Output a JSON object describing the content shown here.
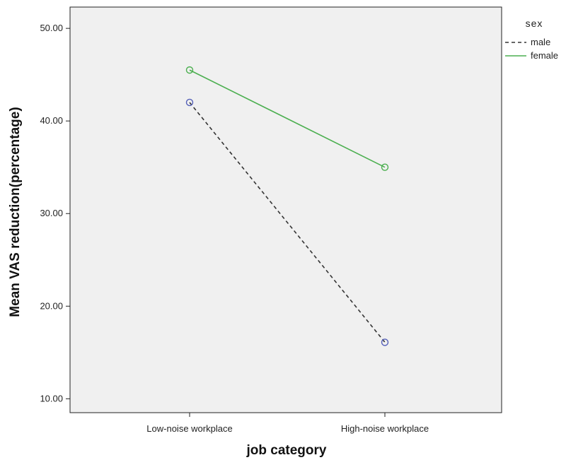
{
  "chart_data": {
    "type": "line",
    "title": "",
    "xlabel": "job category",
    "ylabel": "Mean VAS reduction(percentage)",
    "categories": [
      "Low-noise workplace",
      "High-noise workplace"
    ],
    "yticks": [
      "10.00",
      "20.00",
      "30.00",
      "40.00",
      "50.00"
    ],
    "ytick_values": [
      10,
      20,
      30,
      40,
      50
    ],
    "ylim": [
      8.5,
      52.3
    ],
    "grid": false,
    "plot_background": "#f0f0f0",
    "legend": {
      "title": "sex",
      "position": "outside-right-top"
    },
    "series": [
      {
        "name": "male",
        "values": [
          42.0,
          16.1
        ],
        "color": "#333333",
        "marker_color": "#5560b8",
        "line_style": "dashed"
      },
      {
        "name": "female",
        "values": [
          45.5,
          35.0
        ],
        "color": "#4caf50",
        "marker_color": "#4caf50",
        "line_style": "solid"
      }
    ]
  }
}
